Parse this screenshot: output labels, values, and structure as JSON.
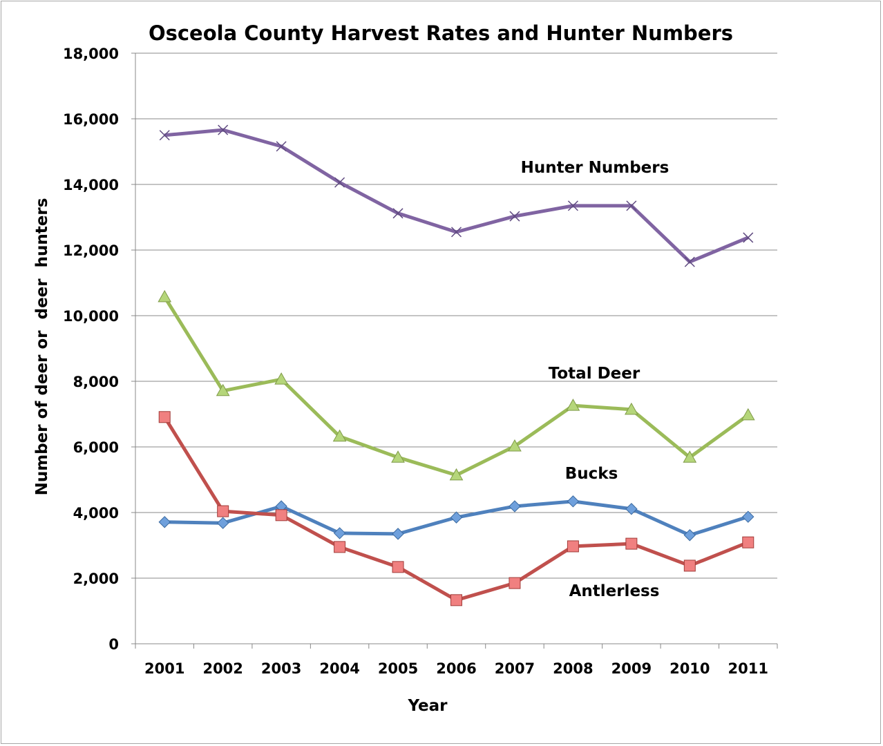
{
  "chart_data": {
    "type": "line",
    "title": "Osceola County Harvest Rates and Hunter Numbers",
    "xlabel": "Year",
    "ylabel": "Number of deer or  deer  hunters",
    "ylim": [
      0,
      18000
    ],
    "yticks": [
      0,
      2000,
      4000,
      6000,
      8000,
      10000,
      12000,
      14000,
      16000,
      18000
    ],
    "ytick_labels": [
      "0",
      "2,000",
      "4,000",
      "6,000",
      "8,000",
      "10,000",
      "12,000",
      "14,000",
      "16,000",
      "18,000"
    ],
    "grid": "horizontal",
    "categories": [
      "2001",
      "2002",
      "2003",
      "2004",
      "2005",
      "2006",
      "2007",
      "2008",
      "2009",
      "2010",
      "2011"
    ],
    "series": [
      {
        "name": "Hunter Numbers",
        "color": "#8064A2",
        "marker": "x",
        "values": [
          15500,
          15660,
          15160,
          14060,
          13120,
          12550,
          13030,
          13350,
          13350,
          11640,
          12380
        ]
      },
      {
        "name": "Total Deer",
        "color": "#9BBB59",
        "marker": "triangle",
        "values": [
          10570,
          7710,
          8060,
          6320,
          5680,
          5140,
          6020,
          7260,
          7140,
          5680,
          6970
        ]
      },
      {
        "name": "Bucks",
        "color": "#4F81BD",
        "marker": "diamond",
        "values": [
          3710,
          3680,
          4190,
          3370,
          3350,
          3850,
          4190,
          4340,
          4110,
          3310,
          3870
        ]
      },
      {
        "name": "Antlerless",
        "color": "#C0504D",
        "marker": "square",
        "values": [
          6910,
          4040,
          3920,
          2950,
          2340,
          1330,
          1850,
          2970,
          3050,
          2380,
          3090
        ]
      }
    ]
  }
}
